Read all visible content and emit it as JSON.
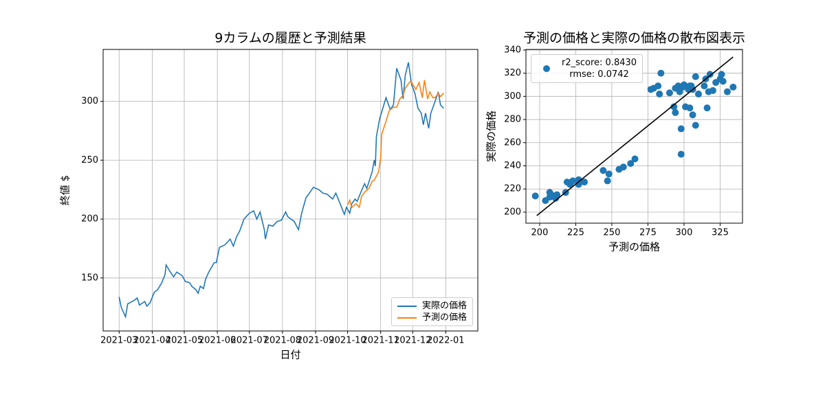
{
  "chart_data": [
    {
      "type": "line",
      "title": "9カラムの履歴と予測結果",
      "xlabel": "日付",
      "ylabel": "終値 $",
      "xlim": [
        "2021-02-14",
        "2022-01-31"
      ],
      "xticks": [
        "2021-03",
        "2021-04",
        "2021-05",
        "2021-06",
        "2021-07",
        "2021-08",
        "2021-09",
        "2021-10",
        "2021-11",
        "2021-12",
        "2022-01"
      ],
      "ylim": [
        105,
        344
      ],
      "yticks": [
        150,
        200,
        250,
        300
      ],
      "grid": true,
      "legend": "lower right",
      "series": [
        {
          "name": "実際の価格",
          "color": "#1f77b4",
          "x": [
            "2021-03-01",
            "2021-03-03",
            "2021-03-07",
            "2021-03-09",
            "2021-03-15",
            "2021-03-18",
            "2021-03-20",
            "2021-03-25",
            "2021-03-27",
            "2021-03-30",
            "2021-04-03",
            "2021-04-06",
            "2021-04-10",
            "2021-04-13",
            "2021-04-14",
            "2021-04-18",
            "2021-04-21",
            "2021-04-24",
            "2021-04-29",
            "2021-05-02",
            "2021-05-06",
            "2021-05-08",
            "2021-05-12",
            "2021-05-14",
            "2021-05-16",
            "2021-05-19",
            "2021-05-21",
            "2021-05-24",
            "2021-05-29",
            "2021-05-31",
            "2021-06-03",
            "2021-06-08",
            "2021-06-13",
            "2021-06-16",
            "2021-06-19",
            "2021-06-22",
            "2021-06-26",
            "2021-07-01",
            "2021-07-05",
            "2021-07-08",
            "2021-07-11",
            "2021-07-15",
            "2021-07-16",
            "2021-07-19",
            "2021-07-23",
            "2021-07-27",
            "2021-07-31",
            "2021-08-04",
            "2021-08-06",
            "2021-08-12",
            "2021-08-16",
            "2021-08-19",
            "2021-08-23",
            "2021-08-27",
            "2021-08-30",
            "2021-09-04",
            "2021-09-08",
            "2021-09-12",
            "2021-09-17",
            "2021-09-20",
            "2021-09-24",
            "2021-09-28",
            "2021-09-30",
            "2021-10-03",
            "2021-10-05",
            "2021-10-08",
            "2021-10-10",
            "2021-10-14",
            "2021-10-17",
            "2021-10-19",
            "2021-10-24",
            "2021-10-26",
            "2021-10-27",
            "2021-10-28",
            "2021-10-31",
            "2021-11-06",
            "2021-11-10",
            "2021-11-13",
            "2021-11-16",
            "2021-11-20",
            "2021-11-22",
            "2021-11-24",
            "2021-11-27",
            "2021-11-30",
            "2021-12-03",
            "2021-12-06",
            "2021-12-09",
            "2021-12-11",
            "2021-12-13",
            "2021-12-16",
            "2021-12-18",
            "2021-12-22",
            "2021-12-25",
            "2021-12-27",
            "2021-12-30"
          ],
          "values": [
            134,
            125,
            117,
            128,
            131,
            133,
            127,
            130,
            126,
            129,
            138,
            140,
            146,
            153,
            161,
            155,
            151,
            155,
            152,
            147,
            146,
            143,
            140,
            137,
            143,
            141,
            149,
            155,
            163,
            163,
            176,
            178,
            183,
            177,
            185,
            190,
            200,
            205,
            207,
            200,
            206,
            191,
            183,
            195,
            194,
            198,
            199,
            206,
            202,
            198,
            191,
            205,
            218,
            223,
            227,
            225,
            222,
            221,
            217,
            222,
            213,
            204,
            210,
            205,
            213,
            217,
            215,
            224,
            230,
            226,
            240,
            250,
            245,
            270,
            285,
            303,
            293,
            297,
            328,
            318,
            302,
            322,
            333,
            314,
            307,
            294,
            290,
            280,
            290,
            277,
            290,
            300,
            308,
            297,
            294
          ]
        },
        {
          "name": "予測の価格",
          "color": "#ff7f0e",
          "x": [
            "2021-10-01",
            "2021-10-03",
            "2021-10-05",
            "2021-10-09",
            "2021-10-12",
            "2021-10-14",
            "2021-10-17",
            "2021-10-21",
            "2021-10-24",
            "2021-10-26",
            "2021-10-30",
            "2021-11-01",
            "2021-11-02",
            "2021-11-06",
            "2021-11-09",
            "2021-11-13",
            "2021-11-16",
            "2021-11-19",
            "2021-11-22",
            "2021-11-24",
            "2021-11-27",
            "2021-11-29",
            "2021-12-02",
            "2021-12-04",
            "2021-12-07",
            "2021-12-10",
            "2021-12-12",
            "2021-12-15",
            "2021-12-17",
            "2021-12-20",
            "2021-12-22",
            "2021-12-25",
            "2021-12-27",
            "2021-12-30"
          ],
          "values": [
            212,
            216,
            210,
            213,
            210,
            219,
            223,
            226,
            232,
            233,
            240,
            252,
            272,
            283,
            292,
            295,
            295,
            302,
            305,
            311,
            315,
            317,
            313,
            310,
            316,
            303,
            318,
            302,
            308,
            303,
            303,
            307,
            304,
            307
          ]
        }
      ]
    },
    {
      "type": "scatter",
      "title": "予測の価格と実際の価格の散布図表示",
      "xlabel": "予測の価格",
      "ylabel": "実際の価格",
      "xlim": [
        190.5,
        340.5
      ],
      "xticks": [
        200,
        225,
        250,
        275,
        300,
        325
      ],
      "ylim": [
        190.5,
        340.5
      ],
      "yticks": [
        200,
        220,
        240,
        260,
        280,
        300,
        320,
        340
      ],
      "grid": true,
      "legend": "upper left",
      "series": [
        {
          "name": "r2_score: 0.8430\nrmse: 0.0742",
          "color": "#1f77b4",
          "x": [
            197,
            204,
            207,
            208,
            210,
            212,
            207,
            211,
            218,
            219,
            222,
            223,
            221,
            227,
            227,
            231,
            244,
            247,
            248,
            255,
            258,
            263,
            266,
            277,
            279,
            282,
            284,
            283,
            290,
            293,
            294,
            294,
            296,
            297,
            298,
            298,
            299,
            300,
            301,
            303,
            304,
            304,
            305,
            306,
            306,
            308,
            308,
            310,
            314,
            315,
            316,
            317,
            318,
            320,
            322,
            325,
            326,
            327,
            330,
            334
          ],
          "values": [
            214,
            210,
            217,
            215,
            214,
            215,
            213,
            212,
            217,
            226,
            226,
            227,
            224,
            228,
            224,
            226,
            236,
            227,
            233,
            237,
            239,
            242,
            246,
            306,
            307,
            309,
            320,
            302,
            303,
            291,
            286,
            307,
            309,
            304,
            272,
            250,
            308,
            310,
            291,
            306,
            309,
            290,
            309,
            306,
            284,
            317,
            275,
            302,
            309,
            315,
            290,
            304,
            319,
            305,
            312,
            315,
            319,
            313,
            304,
            308
          ]
        }
      ],
      "lines": [
        {
          "color": "#000000",
          "x": [
            198,
            334
          ],
          "values": [
            197,
            334
          ]
        }
      ]
    }
  ]
}
